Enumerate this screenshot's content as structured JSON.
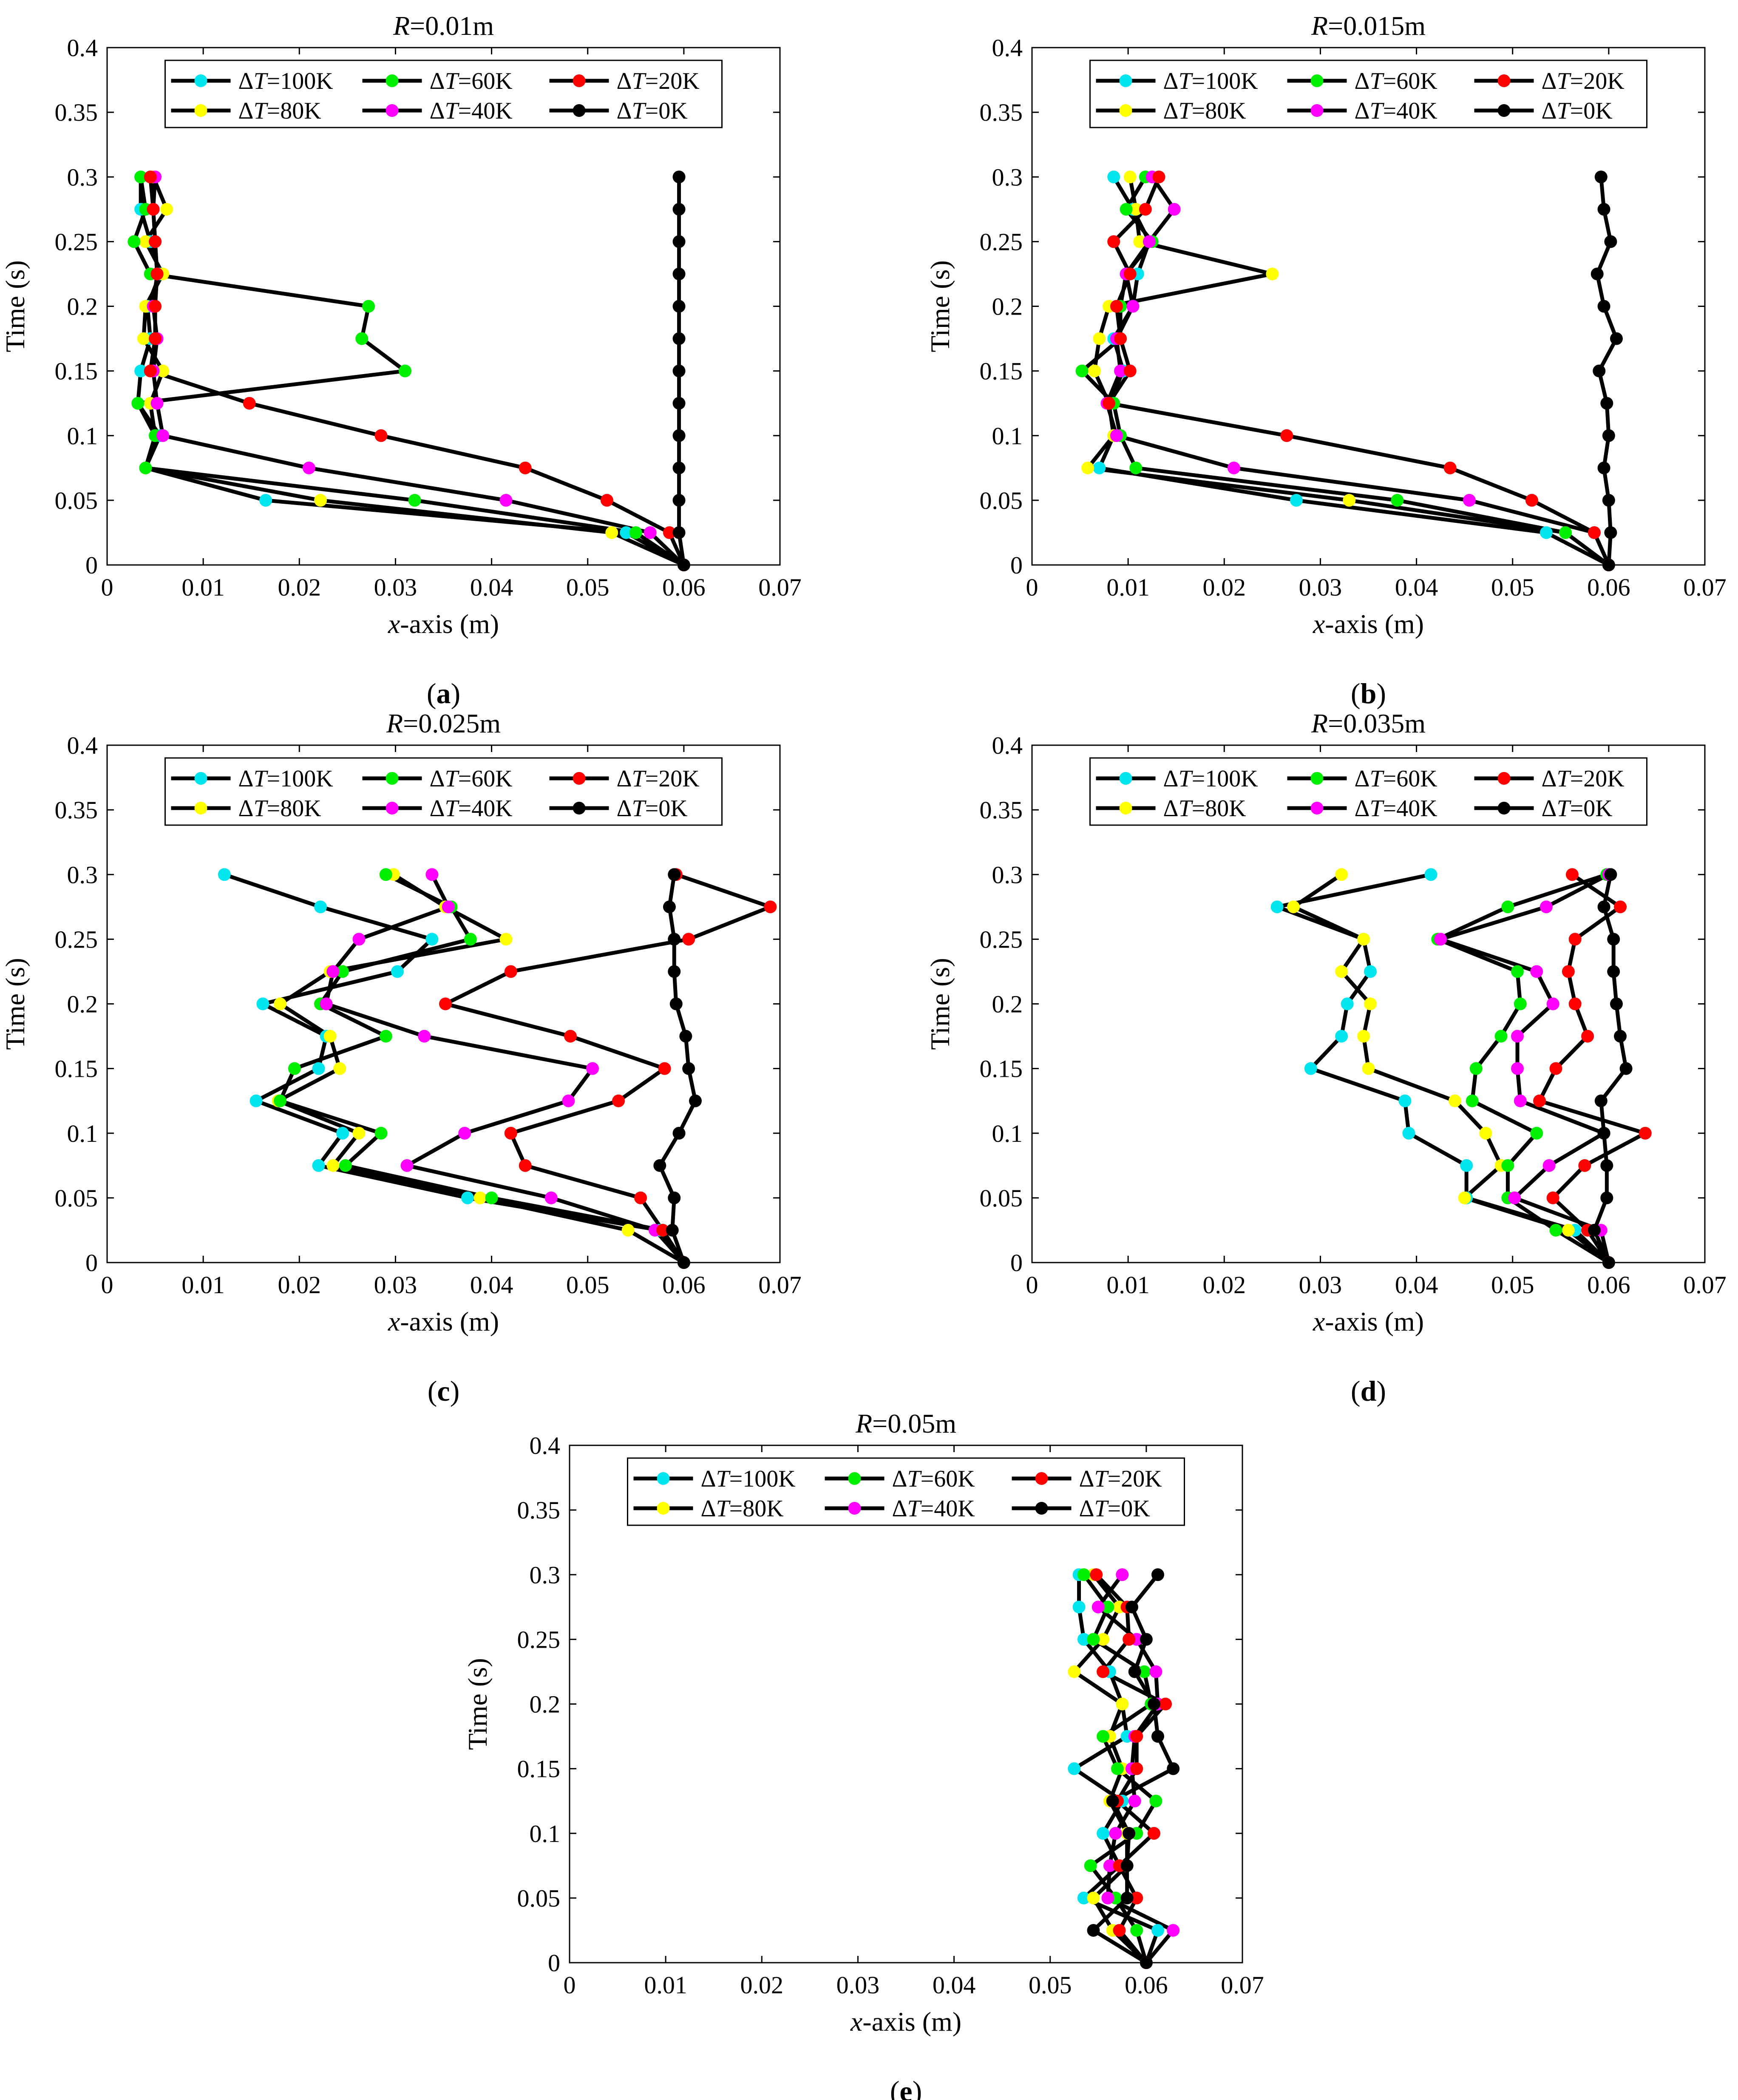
{
  "figure": {
    "legend_symbol": "Δ",
    "panels": [
      {
        "title_var": "R",
        "title_val": "=0.01m",
        "label_pre": "(",
        "label_letter": "a",
        "label_post": ")"
      },
      {
        "title_var": "R",
        "title_val": "=0.015m",
        "label_pre": "(",
        "label_letter": "b",
        "label_post": ")"
      },
      {
        "title_var": "R",
        "title_val": "=0.025m",
        "label_pre": "(",
        "label_letter": "c",
        "label_post": ")"
      },
      {
        "title_var": "R",
        "title_val": "=0.035m",
        "label_pre": "(",
        "label_letter": "d",
        "label_post": ")"
      },
      {
        "title_var": "R",
        "title_val": "=0.05m",
        "label_pre": "(",
        "label_letter": "e",
        "label_post": ")"
      }
    ]
  },
  "chart_data": [
    {
      "type": "line",
      "title": "R=0.01m",
      "xlabel": "x-axis (m)",
      "ylabel": "Time (s)",
      "xlim": [
        0,
        0.07
      ],
      "ylim": [
        0,
        0.4
      ],
      "xticks": [
        "0",
        "0.01",
        "0.02",
        "0.03",
        "0.04",
        "0.05",
        "0.06",
        "0.07"
      ],
      "yticks": [
        "0",
        "0.05",
        "0.1",
        "0.15",
        "0.2",
        "0.25",
        "0.3",
        "0.35",
        "0.4"
      ],
      "legend_position": "top",
      "y": [
        0,
        0.025,
        0.05,
        0.075,
        0.1,
        0.125,
        0.15,
        0.175,
        0.2,
        0.225,
        0.25,
        0.275,
        0.3
      ],
      "series": [
        {
          "name": "ΔT=100K",
          "var": "T",
          "val": "=100K",
          "color": "#00e5ee",
          "x": [
            0.06,
            0.054,
            0.0165,
            0.004,
            0.0055,
            0.0032,
            0.0035,
            0.0045,
            0.0042,
            0.0055,
            0.0045,
            0.0035,
            0.0035
          ]
        },
        {
          "name": "ΔT=80K",
          "var": "T",
          "val": "=80K",
          "color": "#ffff00",
          "x": [
            0.06,
            0.0525,
            0.0222,
            0.004,
            0.005,
            0.0045,
            0.0058,
            0.0038,
            0.004,
            0.0058,
            0.004,
            0.0062,
            0.0048
          ]
        },
        {
          "name": "ΔT=60K",
          "var": "T",
          "val": "=60K",
          "color": "#00ee00",
          "x": [
            0.06,
            0.055,
            0.032,
            0.004,
            0.005,
            0.0032,
            0.031,
            0.0265,
            0.0272,
            0.0045,
            0.0028,
            0.004,
            0.0035
          ]
        },
        {
          "name": "ΔT=40K",
          "var": "T",
          "val": "=40K",
          "color": "#ff00ff",
          "x": [
            0.06,
            0.0565,
            0.0415,
            0.021,
            0.0058,
            0.0052,
            0.0048,
            0.0052,
            0.0048,
            0.0052,
            0.005,
            0.0048,
            0.005
          ]
        },
        {
          "name": "ΔT=20K",
          "var": "T",
          "val": "=20K",
          "color": "#ff0000",
          "x": [
            0.06,
            0.0585,
            0.052,
            0.0435,
            0.0285,
            0.0148,
            0.0045,
            0.005,
            0.005,
            0.0052,
            0.005,
            0.0048,
            0.0045
          ]
        },
        {
          "name": "ΔT=0K",
          "var": "T",
          "val": "=0K",
          "color": "#000000",
          "x": [
            0.06,
            0.0595,
            0.0595,
            0.0595,
            0.0595,
            0.0595,
            0.0595,
            0.0595,
            0.0595,
            0.0595,
            0.0595,
            0.0595,
            0.0595
          ]
        }
      ]
    },
    {
      "type": "line",
      "title": "R=0.015m",
      "xlabel": "x-axis (m)",
      "ylabel": "Time (s)",
      "xlim": [
        0,
        0.07
      ],
      "ylim": [
        0,
        0.4
      ],
      "xticks": [
        "0",
        "0.01",
        "0.02",
        "0.03",
        "0.04",
        "0.05",
        "0.06",
        "0.07"
      ],
      "yticks": [
        "0",
        "0.05",
        "0.1",
        "0.15",
        "0.2",
        "0.25",
        "0.3",
        "0.35",
        "0.4"
      ],
      "legend_position": "top",
      "y": [
        0,
        0.025,
        0.05,
        0.075,
        0.1,
        0.125,
        0.15,
        0.175,
        0.2,
        0.225,
        0.25,
        0.275,
        0.3
      ],
      "series": [
        {
          "name": "ΔT=100K",
          "var": "T",
          "val": "=100K",
          "color": "#00e5ee",
          "x": [
            0.06,
            0.0535,
            0.0275,
            0.007,
            0.0085,
            0.008,
            0.0095,
            0.0085,
            0.0105,
            0.011,
            0.0122,
            0.0105,
            0.0085
          ]
        },
        {
          "name": "ΔT=80K",
          "var": "T",
          "val": "=80K",
          "color": "#ffff00",
          "x": [
            0.06,
            0.0555,
            0.033,
            0.0058,
            0.0085,
            0.008,
            0.0065,
            0.007,
            0.008,
            0.025,
            0.0112,
            0.0108,
            0.0102
          ]
        },
        {
          "name": "ΔT=60K",
          "var": "T",
          "val": "=60K",
          "color": "#00ee00",
          "x": [
            0.06,
            0.0555,
            0.038,
            0.0108,
            0.0092,
            0.0085,
            0.0052,
            0.0092,
            0.0092,
            0.0098,
            0.0125,
            0.0098,
            0.0118
          ]
        },
        {
          "name": "ΔT=40K",
          "var": "T",
          "val": "=40K",
          "color": "#ff00ff",
          "x": [
            0.06,
            0.0585,
            0.0455,
            0.021,
            0.0088,
            0.0078,
            0.0092,
            0.0088,
            0.0105,
            0.0098,
            0.0122,
            0.0148,
            0.0125
          ]
        },
        {
          "name": "ΔT=20K",
          "var": "T",
          "val": "=20K",
          "color": "#ff0000",
          "x": [
            0.06,
            0.0585,
            0.052,
            0.0435,
            0.0265,
            0.008,
            0.0102,
            0.0092,
            0.0088,
            0.0102,
            0.0085,
            0.0118,
            0.0132
          ]
        },
        {
          "name": "ΔT=0K",
          "var": "T",
          "val": "=0K",
          "color": "#000000",
          "x": [
            0.06,
            0.0602,
            0.06,
            0.0595,
            0.06,
            0.0598,
            0.059,
            0.0608,
            0.0595,
            0.0588,
            0.0602,
            0.0595,
            0.0592
          ]
        }
      ]
    },
    {
      "type": "line",
      "title": "R=0.025m",
      "xlabel": "x-axis (m)",
      "ylabel": "Time (s)",
      "xlim": [
        0,
        0.07
      ],
      "ylim": [
        0,
        0.4
      ],
      "xticks": [
        "0",
        "0.01",
        "0.02",
        "0.03",
        "0.04",
        "0.05",
        "0.06",
        "0.07"
      ],
      "yticks": [
        "0",
        "0.05",
        "0.1",
        "0.15",
        "0.2",
        "0.25",
        "0.3",
        "0.35",
        "0.4"
      ],
      "legend_position": "top",
      "y": [
        0,
        0.025,
        0.05,
        0.075,
        0.1,
        0.125,
        0.15,
        0.175,
        0.2,
        0.225,
        0.25,
        0.275,
        0.3
      ],
      "series": [
        {
          "name": "ΔT=100K",
          "var": "T",
          "val": "=100K",
          "color": "#00e5ee",
          "x": [
            0.06,
            0.0575,
            0.0375,
            0.022,
            0.0245,
            0.0155,
            0.022,
            0.0228,
            0.0162,
            0.0302,
            0.0338,
            0.0222,
            0.0122
          ]
        },
        {
          "name": "ΔT=80K",
          "var": "T",
          "val": "=80K",
          "color": "#ffff00",
          "x": [
            0.06,
            0.0542,
            0.0388,
            0.0235,
            0.0262,
            0.0178,
            0.0242,
            0.0232,
            0.018,
            0.0232,
            0.0415,
            0.0352,
            0.0298
          ]
        },
        {
          "name": "ΔT=60K",
          "var": "T",
          "val": "=60K",
          "color": "#00ee00",
          "x": [
            0.06,
            0.0578,
            0.04,
            0.0248,
            0.0285,
            0.018,
            0.0195,
            0.029,
            0.0222,
            0.0245,
            0.0378,
            0.0358,
            0.029
          ]
        },
        {
          "name": "ΔT=40K",
          "var": "T",
          "val": "=40K",
          "color": "#ff00ff",
          "x": [
            0.06,
            0.057,
            0.0462,
            0.0312,
            0.0372,
            0.048,
            0.0505,
            0.033,
            0.0228,
            0.0235,
            0.0262,
            0.0355,
            0.0338
          ]
        },
        {
          "name": "ΔT=20K",
          "var": "T",
          "val": "=20K",
          "color": "#ff0000",
          "x": [
            0.06,
            0.0578,
            0.0555,
            0.0435,
            0.042,
            0.0532,
            0.058,
            0.0482,
            0.0352,
            0.042,
            0.0605,
            0.069,
            0.0592
          ]
        },
        {
          "name": "ΔT=0K",
          "var": "T",
          "val": "=0K",
          "color": "#000000",
          "x": [
            0.06,
            0.0588,
            0.059,
            0.0575,
            0.0595,
            0.0612,
            0.0605,
            0.0602,
            0.0592,
            0.059,
            0.059,
            0.0585,
            0.059
          ]
        }
      ]
    },
    {
      "type": "line",
      "title": "R=0.035m",
      "xlabel": "x-axis (m)",
      "ylabel": "Time (s)",
      "xlim": [
        0,
        0.07
      ],
      "ylim": [
        0,
        0.4
      ],
      "xticks": [
        "0",
        "0.01",
        "0.02",
        "0.03",
        "0.04",
        "0.05",
        "0.06",
        "0.07"
      ],
      "yticks": [
        "0",
        "0.05",
        "0.1",
        "0.15",
        "0.2",
        "0.25",
        "0.3",
        "0.35",
        "0.4"
      ],
      "legend_position": "top",
      "y": [
        0,
        0.025,
        0.05,
        0.075,
        0.1,
        0.125,
        0.15,
        0.175,
        0.2,
        0.225,
        0.25,
        0.275,
        0.3
      ],
      "series": [
        {
          "name": "ΔT=100K",
          "var": "T",
          "val": "=100K",
          "color": "#00e5ee",
          "x": [
            0.06,
            0.0565,
            0.0452,
            0.0452,
            0.0392,
            0.0388,
            0.029,
            0.0322,
            0.0328,
            0.0352,
            0.0345,
            0.0255,
            0.0415
          ]
        },
        {
          "name": "ΔT=80K",
          "var": "T",
          "val": "=80K",
          "color": "#ffff00",
          "x": [
            0.06,
            0.0558,
            0.045,
            0.0488,
            0.0472,
            0.044,
            0.035,
            0.0345,
            0.0352,
            0.0322,
            0.0345,
            0.0272,
            0.0322
          ]
        },
        {
          "name": "ΔT=60K",
          "var": "T",
          "val": "=60K",
          "color": "#00ee00",
          "x": [
            0.06,
            0.0545,
            0.0495,
            0.0495,
            0.0525,
            0.0458,
            0.0462,
            0.0488,
            0.0508,
            0.0505,
            0.0422,
            0.0495,
            0.0598
          ]
        },
        {
          "name": "ΔT=40K",
          "var": "T",
          "val": "=40K",
          "color": "#ff00ff",
          "x": [
            0.06,
            0.0592,
            0.0502,
            0.0538,
            0.0595,
            0.0508,
            0.0505,
            0.0505,
            0.0542,
            0.0525,
            0.0425,
            0.0535,
            0.06
          ]
        },
        {
          "name": "ΔT=20K",
          "var": "T",
          "val": "=20K",
          "color": "#ff0000",
          "x": [
            0.06,
            0.0578,
            0.0542,
            0.0575,
            0.0638,
            0.0528,
            0.0545,
            0.0578,
            0.0565,
            0.0558,
            0.0565,
            0.0612,
            0.0562
          ]
        },
        {
          "name": "ΔT=0K",
          "var": "T",
          "val": "=0K",
          "color": "#000000",
          "x": [
            0.06,
            0.0585,
            0.0598,
            0.0598,
            0.0595,
            0.0592,
            0.0618,
            0.0612,
            0.0608,
            0.0605,
            0.0605,
            0.0595,
            0.0602
          ]
        }
      ]
    },
    {
      "type": "line",
      "title": "R=0.05m",
      "xlabel": "x-axis (m)",
      "ylabel": "Time (s)",
      "xlim": [
        0,
        0.07
      ],
      "ylim": [
        0,
        0.4
      ],
      "xticks": [
        "0",
        "0.01",
        "0.02",
        "0.03",
        "0.04",
        "0.05",
        "0.06",
        "0.07"
      ],
      "yticks": [
        "0",
        "0.05",
        "0.1",
        "0.15",
        "0.2",
        "0.25",
        "0.3",
        "0.35",
        "0.4"
      ],
      "legend_position": "top",
      "y": [
        0,
        0.025,
        0.05,
        0.075,
        0.1,
        0.125,
        0.15,
        0.175,
        0.2,
        0.225,
        0.25,
        0.275,
        0.3
      ],
      "series": [
        {
          "name": "ΔT=100K",
          "var": "T",
          "val": "=100K",
          "color": "#00e5ee",
          "x": [
            0.06,
            0.0612,
            0.0535,
            0.0572,
            0.0555,
            0.0575,
            0.0525,
            0.058,
            0.0575,
            0.0562,
            0.0535,
            0.053,
            0.053
          ]
        },
        {
          "name": "ΔT=80K",
          "var": "T",
          "val": "=80K",
          "color": "#ffff00",
          "x": [
            0.06,
            0.0565,
            0.0545,
            0.058,
            0.058,
            0.0562,
            0.0575,
            0.0562,
            0.0575,
            0.0525,
            0.0555,
            0.0572,
            0.0545
          ]
        },
        {
          "name": "ΔT=60K",
          "var": "T",
          "val": "=60K",
          "color": "#00ee00",
          "x": [
            0.06,
            0.059,
            0.0568,
            0.0542,
            0.059,
            0.061,
            0.057,
            0.0555,
            0.0605,
            0.0598,
            0.0545,
            0.056,
            0.0535
          ]
        },
        {
          "name": "ΔT=40K",
          "var": "T",
          "val": "=40K",
          "color": "#ff00ff",
          "x": [
            0.06,
            0.0628,
            0.056,
            0.0562,
            0.0568,
            0.0588,
            0.0585,
            0.0588,
            0.0612,
            0.061,
            0.059,
            0.055,
            0.0575
          ]
        },
        {
          "name": "ΔT=20K",
          "var": "T",
          "val": "=20K",
          "color": "#ff0000",
          "x": [
            0.06,
            0.0572,
            0.059,
            0.0572,
            0.0608,
            0.057,
            0.059,
            0.059,
            0.062,
            0.0555,
            0.0582,
            0.058,
            0.0548
          ]
        },
        {
          "name": "ΔT=0K",
          "var": "T",
          "val": "=0K",
          "color": "#000000",
          "x": [
            0.06,
            0.0545,
            0.058,
            0.058,
            0.0582,
            0.0565,
            0.0628,
            0.0612,
            0.0608,
            0.0588,
            0.06,
            0.0585,
            0.0612
          ]
        }
      ]
    }
  ]
}
